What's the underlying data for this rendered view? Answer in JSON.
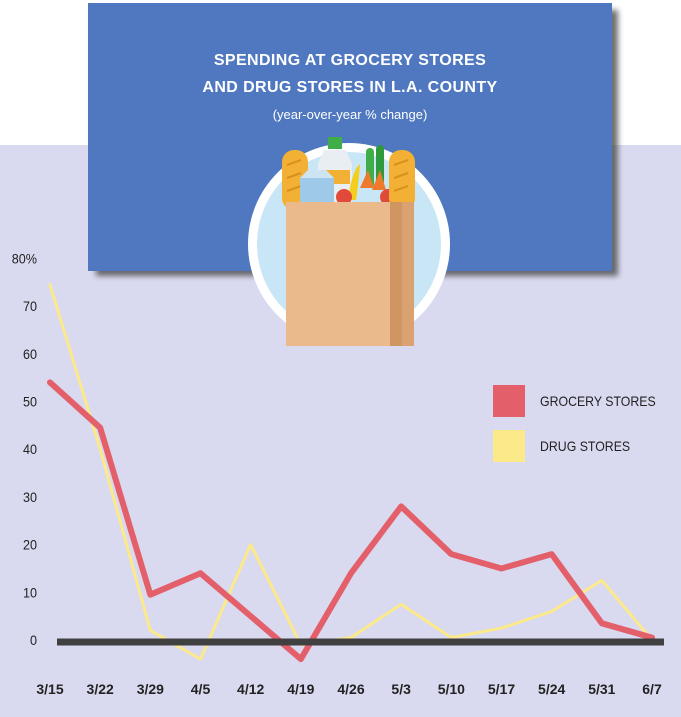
{
  "colors": {
    "background_panel": "#d9daf0",
    "title_box": "#4f78c0",
    "grocery": "#e3606a",
    "drug": "#fbe98a",
    "baseline": "#404040"
  },
  "title": {
    "line1": "SPENDING AT GROCERY STORES",
    "line2": "AND DRUG STORES IN L.A. COUNTY",
    "subtitle": "(year-over-year % change)"
  },
  "illustration_icon": "grocery-bag-icon",
  "legend": {
    "grocery_label": "GROCERY STORES",
    "drug_label": "DRUG STORES"
  },
  "chart_data": {
    "type": "line",
    "title": "SPENDING AT GROCERY STORES AND DRUG STORES IN L.A. COUNTY",
    "subtitle": "(year-over-year % change)",
    "x": [
      "3/15",
      "3/22",
      "3/29",
      "4/5",
      "4/12",
      "4/19",
      "4/26",
      "5/3",
      "5/10",
      "5/17",
      "5/24",
      "5/31",
      "6/7"
    ],
    "y_ticks": [
      "80%",
      "70",
      "60",
      "50",
      "40",
      "30",
      "20",
      "10",
      "0"
    ],
    "ylim": [
      -5,
      80
    ],
    "grid": false,
    "legend_position": "right",
    "series": [
      {
        "name": "GROCERY STORES",
        "color": "#e3606a",
        "values": [
          54,
          44.5,
          9.5,
          14,
          5,
          -4,
          14,
          28,
          18,
          15,
          18,
          3.5,
          0.5
        ]
      },
      {
        "name": "DRUG STORES",
        "color": "#fbe98a",
        "values": [
          74.5,
          40,
          2,
          -4,
          20,
          -1,
          0.5,
          7.5,
          0.5,
          2.5,
          6,
          12.5,
          0
        ]
      }
    ]
  }
}
